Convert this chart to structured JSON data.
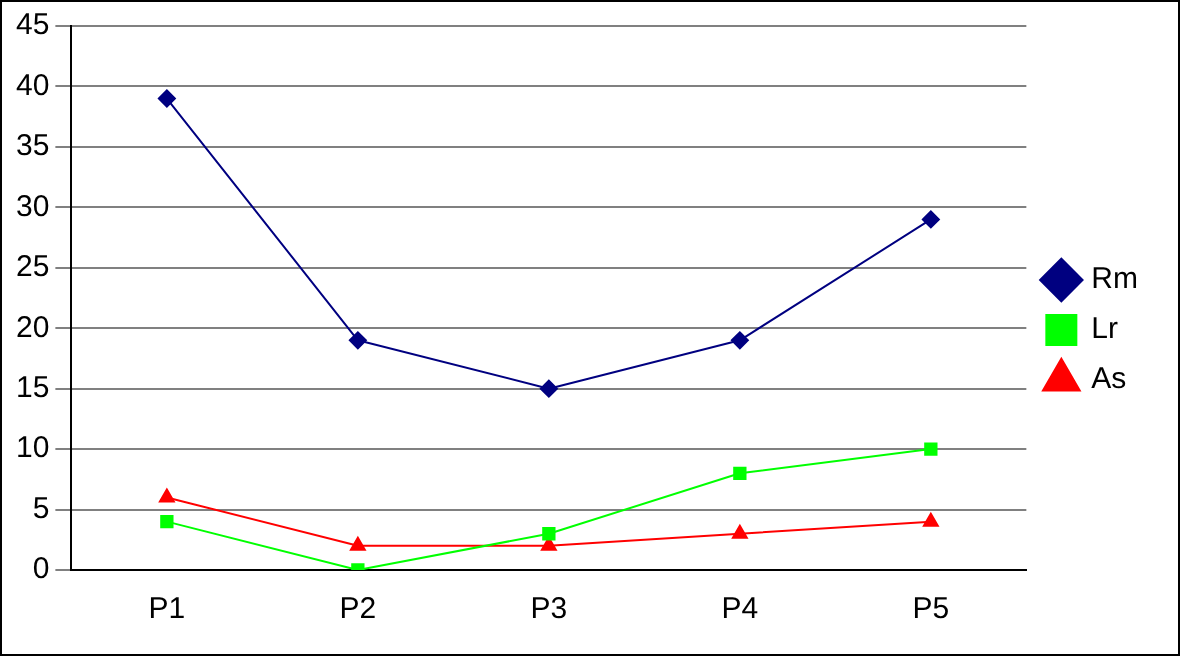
{
  "chart_data": {
    "type": "line",
    "categories": [
      "P1",
      "P2",
      "P3",
      "P4",
      "P5"
    ],
    "series": [
      {
        "name": "Rm",
        "color": "#000080",
        "values": [
          39,
          19,
          15,
          19,
          29
        ],
        "marker": "diamond"
      },
      {
        "name": "Lr",
        "color": "#00ff00",
        "values": [
          4,
          0,
          3,
          8,
          10
        ],
        "marker": "square"
      },
      {
        "name": "As",
        "color": "#ff0000",
        "values": [
          6,
          2,
          2,
          3,
          4
        ],
        "marker": "triangle"
      }
    ],
    "ylim": [
      0,
      45
    ],
    "yticks": [
      0,
      5,
      10,
      15,
      20,
      25,
      30,
      35,
      40,
      45
    ],
    "grid": "y",
    "legend": "right"
  }
}
